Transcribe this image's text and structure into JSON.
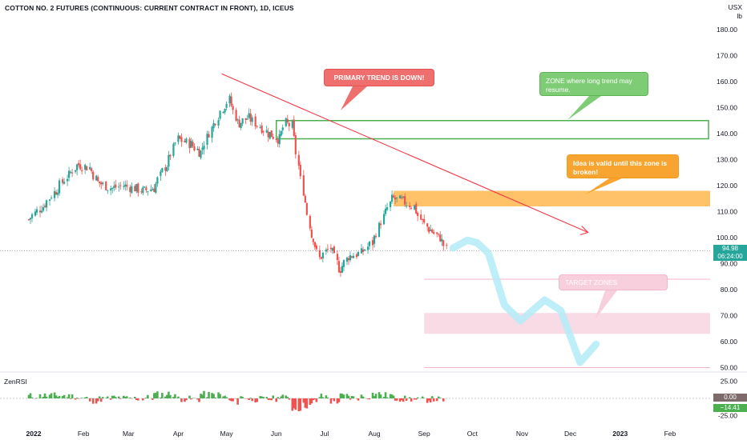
{
  "header": {
    "title": "COTTON NO. 2 FUTURES (CONTINUOUS: CURRENT CONTRACT IN FRONT), 1D, ICEUS",
    "unit_top": "USX",
    "unit_bottom": "lb"
  },
  "price_axis": {
    "ticks": [
      "180.00",
      "170.00",
      "160.00",
      "150.00",
      "140.00",
      "130.00",
      "120.00",
      "110.00",
      "100.00",
      "90.00",
      "80.00",
      "70.00",
      "60.00",
      "50.00"
    ],
    "last_price": "94.98",
    "countdown": "06:24:00"
  },
  "time_axis": {
    "labels": [
      "2022",
      "Feb",
      "Mar",
      "Apr",
      "May",
      "Jun",
      "Jul",
      "Aug",
      "Sep",
      "Oct",
      "Nov",
      "Dec",
      "2023",
      "Feb"
    ]
  },
  "annotations": {
    "primary_trend": "PRIMARY TREND IS DOWN!",
    "resume_zone": "ZONE where long trend may resume.",
    "valid_zone": "Idea is valid until this zone is broken!",
    "target_zones": "TARGET ZONES"
  },
  "indicator": {
    "name": "ZenRSI",
    "ticks": [
      "25.00",
      "0.00",
      "-25.00"
    ],
    "zero_tag": "0.00",
    "value_tag": "−14.41"
  },
  "colors": {
    "up": "#26a69a",
    "up_bar": "#4caf50",
    "down": "#ef5350",
    "trend_line": "#f23645",
    "green_zone": "#4caf50",
    "orange_zone": "#ffb74d",
    "pink_zone": "#f8d7e2",
    "projection": "#b3ecf7"
  },
  "chart_data": {
    "type": "candlestick",
    "title": "COTTON NO. 2 FUTURES (CONTINUOUS: CURRENT CONTRACT IN FRONT), 1D, ICEUS",
    "ylabel": "USX lb",
    "ylim": [
      45,
      185
    ],
    "x_range": [
      "2022-01-01",
      "2023-02-20"
    ],
    "price_path": [
      [
        "2022-01-01",
        107
      ],
      [
        "2022-01-10",
        112
      ],
      [
        "2022-01-18",
        118
      ],
      [
        "2022-01-26",
        124
      ],
      [
        "2022-02-01",
        128
      ],
      [
        "2022-02-08",
        127
      ],
      [
        "2022-02-14",
        121
      ],
      [
        "2022-02-22",
        119
      ],
      [
        "2022-03-01",
        120
      ],
      [
        "2022-03-08",
        119
      ],
      [
        "2022-03-14",
        118
      ],
      [
        "2022-03-20",
        119
      ],
      [
        "2022-03-28",
        128
      ],
      [
        "2022-04-04",
        138
      ],
      [
        "2022-04-12",
        136
      ],
      [
        "2022-04-18",
        133
      ],
      [
        "2022-04-25",
        142
      ],
      [
        "2022-05-02",
        150
      ],
      [
        "2022-05-06",
        153
      ],
      [
        "2022-05-12",
        144
      ],
      [
        "2022-05-18",
        146
      ],
      [
        "2022-05-25",
        143
      ],
      [
        "2022-05-31",
        140
      ],
      [
        "2022-06-06",
        138
      ],
      [
        "2022-06-10",
        144
      ],
      [
        "2022-06-14",
        143
      ],
      [
        "2022-06-21",
        118
      ],
      [
        "2022-06-27",
        100
      ],
      [
        "2022-07-01",
        92
      ],
      [
        "2022-07-08",
        96
      ],
      [
        "2022-07-14",
        88
      ],
      [
        "2022-07-20",
        93
      ],
      [
        "2022-07-27",
        94
      ],
      [
        "2022-08-03",
        98
      ],
      [
        "2022-08-10",
        108
      ],
      [
        "2022-08-16",
        115
      ],
      [
        "2022-08-22",
        114
      ],
      [
        "2022-08-29",
        112
      ],
      [
        "2022-09-02",
        107
      ],
      [
        "2022-09-08",
        103
      ],
      [
        "2022-09-14",
        100
      ],
      [
        "2022-09-19",
        94.98
      ]
    ],
    "last_price": 94.98,
    "levels": {
      "resume_zone": [
        138,
        145
      ],
      "valid_zone": [
        112,
        118
      ],
      "target_zone": [
        63,
        71
      ],
      "target_line_upper": 84,
      "target_line_lower": 50
    },
    "trend_line": [
      [
        "2022-05-01",
        163
      ],
      [
        "2022-12-15",
        102
      ]
    ],
    "projection_path": [
      [
        "2022-09-22",
        96
      ],
      [
        "2022-10-01",
        99
      ],
      [
        "2022-10-07",
        98
      ],
      [
        "2022-10-14",
        94
      ],
      [
        "2022-10-24",
        74
      ],
      [
        "2022-11-03",
        68
      ],
      [
        "2022-11-18",
        76
      ],
      [
        "2022-11-28",
        72
      ],
      [
        "2022-12-10",
        52
      ],
      [
        "2022-12-20",
        59
      ]
    ],
    "rsi": {
      "name": "ZenRSI",
      "ylim": [
        -30,
        30
      ],
      "last": -14.41
    }
  }
}
